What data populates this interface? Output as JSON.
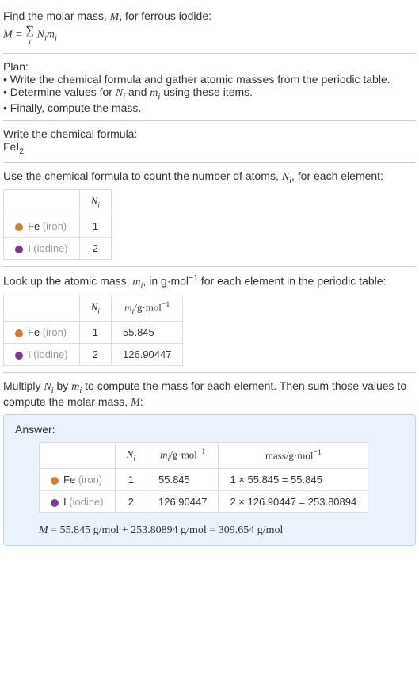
{
  "intro": {
    "line1": "Find the molar mass, ",
    "var_M": "M",
    "line1b": ", for ferrous iodide:",
    "eq_lhs": "M = ",
    "sigma": "∑",
    "sigma_sub": "i",
    "eq_rhs1": "N",
    "eq_rhs1_sub": "i",
    "eq_rhs2": "m",
    "eq_rhs2_sub": "i"
  },
  "plan": {
    "header": "Plan:",
    "b1": "• Write the chemical formula and gather atomic masses from the periodic table.",
    "b2a": "• Determine values for ",
    "b2_n": "N",
    "b2_nsub": "i",
    "b2b": " and ",
    "b2_m": "m",
    "b2_msub": "i",
    "b2c": " using these items.",
    "b3": "• Finally, compute the mass."
  },
  "formula": {
    "header": "Write the chemical formula:",
    "text": "FeI",
    "sub": "2"
  },
  "count": {
    "header_a": "Use the chemical formula to count the number of atoms, ",
    "var_N": "N",
    "var_Nsub": "i",
    "header_b": ", for each element:",
    "col_N": "N",
    "col_Nsub": "i",
    "rows": [
      {
        "color": "#d97b2e",
        "sym": "Fe",
        "name": "(iron)",
        "n": "1"
      },
      {
        "color": "#7a3c8f",
        "sym": "I",
        "name": "(iodine)",
        "n": "2"
      }
    ]
  },
  "lookup": {
    "header_a": "Look up the atomic mass, ",
    "var_m": "m",
    "var_msub": "i",
    "header_b": ", in g·mol",
    "header_sup": "−1",
    "header_c": " for each element in the periodic table:",
    "col_N": "N",
    "col_Nsub": "i",
    "col_m": "m",
    "col_msub": "i",
    "col_unit": "/g·mol",
    "col_unit_sup": "−1",
    "rows": [
      {
        "color": "#d97b2e",
        "sym": "Fe",
        "name": "(iron)",
        "n": "1",
        "m": "55.845"
      },
      {
        "color": "#7a3c8f",
        "sym": "I",
        "name": "(iodine)",
        "n": "2",
        "m": "126.90447"
      }
    ]
  },
  "multiply": {
    "text_a": "Multiply ",
    "n": "N",
    "nsub": "i",
    "text_b": " by ",
    "m": "m",
    "msub": "i",
    "text_c": " to compute the mass for each element. Then sum those values to compute the molar mass, ",
    "M": "M",
    "text_d": ":"
  },
  "answer": {
    "label": "Answer:",
    "col_N": "N",
    "col_Nsub": "i",
    "col_m": "m",
    "col_msub": "i",
    "col_munit": "/g·mol",
    "col_munit_sup": "−1",
    "col_mass": "mass/g·mol",
    "col_mass_sup": "−1",
    "rows": [
      {
        "color": "#d97b2e",
        "sym": "Fe",
        "name": "(iron)",
        "n": "1",
        "m": "55.845",
        "mass": "1 × 55.845 = 55.845"
      },
      {
        "color": "#7a3c8f",
        "sym": "I",
        "name": "(iodine)",
        "n": "2",
        "m": "126.90447",
        "mass": "2 × 126.90447 = 253.80894"
      }
    ],
    "final_M": "M",
    "final_eq": " = 55.845 g/mol + 253.80894 g/mol = 309.654 g/mol"
  },
  "colors": {
    "border": "#ccc",
    "cell_border": "#ddd",
    "answer_bg": "#eaf2fb",
    "answer_border": "#b8d4ef",
    "muted": "#999999"
  }
}
